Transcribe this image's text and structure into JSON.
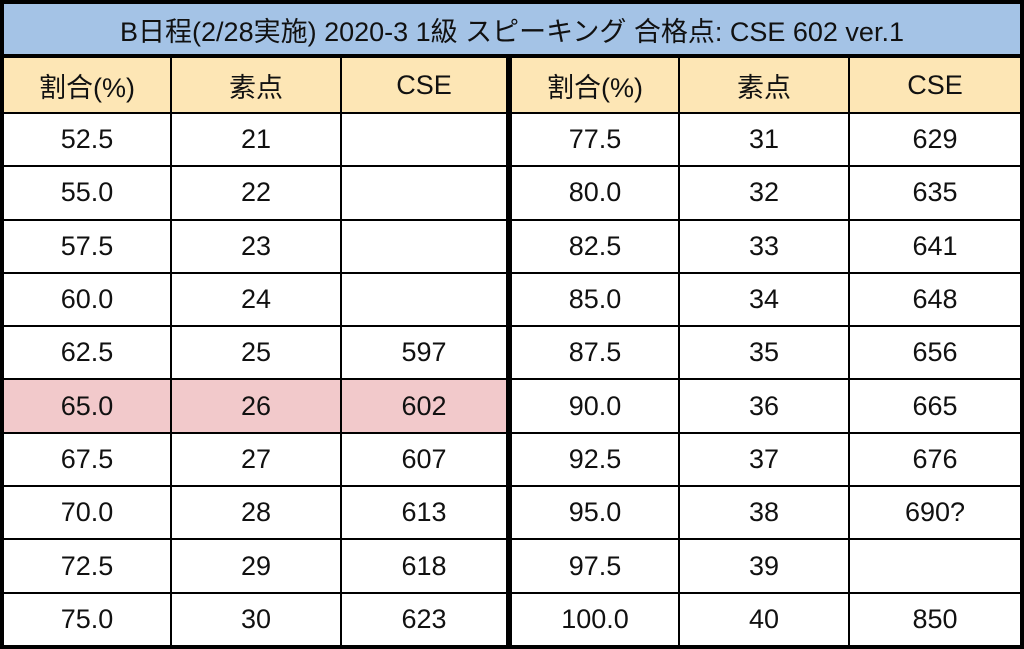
{
  "title": "B日程(2/28実施)  2020-3 1級 スピーキング 合格点: CSE 602 ver.1",
  "colors": {
    "title_bg": "#a4c3e6",
    "header_bg": "#fde6b5",
    "highlight_bg": "#f2c9cb"
  },
  "headers": [
    "割合(%)",
    "素点",
    "CSE"
  ],
  "left_rows": [
    [
      "52.5",
      "21",
      ""
    ],
    [
      "55.0",
      "22",
      ""
    ],
    [
      "57.5",
      "23",
      ""
    ],
    [
      "60.0",
      "24",
      ""
    ],
    [
      "62.5",
      "25",
      "597"
    ],
    [
      "65.0",
      "26",
      "602"
    ],
    [
      "67.5",
      "27",
      "607"
    ],
    [
      "70.0",
      "28",
      "613"
    ],
    [
      "72.5",
      "29",
      "618"
    ],
    [
      "75.0",
      "30",
      "623"
    ]
  ],
  "right_rows": [
    [
      "77.5",
      "31",
      "629"
    ],
    [
      "80.0",
      "32",
      "635"
    ],
    [
      "82.5",
      "33",
      "641"
    ],
    [
      "85.0",
      "34",
      "648"
    ],
    [
      "87.5",
      "35",
      "656"
    ],
    [
      "90.0",
      "36",
      "665"
    ],
    [
      "92.5",
      "37",
      "676"
    ],
    [
      "95.0",
      "38",
      "690?"
    ],
    [
      "97.5",
      "39",
      ""
    ],
    [
      "100.0",
      "40",
      "850"
    ]
  ],
  "highlighted_row": "65.0"
}
